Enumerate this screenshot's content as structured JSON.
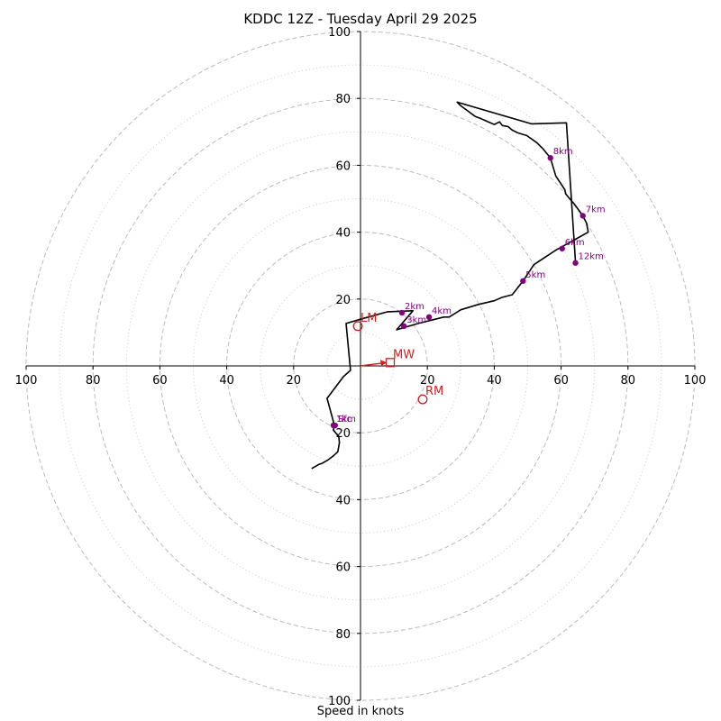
{
  "chart_data": {
    "type": "hodograph",
    "title": "KDDC 12Z - Tuesday April 29 2025",
    "xlabel": "Speed in knots",
    "xlim": [
      -100,
      100
    ],
    "ylim": [
      -100,
      100
    ],
    "ring_major": [
      20,
      40,
      60,
      80,
      100
    ],
    "ring_minor": [
      10,
      30,
      50,
      70,
      90
    ],
    "x_ticks": [
      {
        "value": -100,
        "label": "100"
      },
      {
        "value": -80,
        "label": "80"
      },
      {
        "value": -60,
        "label": "60"
      },
      {
        "value": -40,
        "label": "40"
      },
      {
        "value": -20,
        "label": "20"
      },
      {
        "value": 20,
        "label": "20"
      },
      {
        "value": 40,
        "label": "40"
      },
      {
        "value": 60,
        "label": "60"
      },
      {
        "value": 80,
        "label": "80"
      },
      {
        "value": 100,
        "label": "100"
      }
    ],
    "y_ticks": [
      {
        "value": 100,
        "label": "100"
      },
      {
        "value": 80,
        "label": "80"
      },
      {
        "value": 60,
        "label": "60"
      },
      {
        "value": 40,
        "label": "40"
      },
      {
        "value": 20,
        "label": "20"
      },
      {
        "value": -20,
        "label": "20"
      },
      {
        "value": -40,
        "label": "40"
      },
      {
        "value": -60,
        "label": "60"
      },
      {
        "value": -80,
        "label": "80"
      },
      {
        "value": -100,
        "label": "100"
      }
    ],
    "trace": [
      [
        -14.6,
        -30.7
      ],
      [
        -12.5,
        -29.5
      ],
      [
        -11.6,
        -29.2
      ],
      [
        -9.7,
        -28.1
      ],
      [
        -8.1,
        -26.9
      ],
      [
        -6.8,
        -25.7
      ],
      [
        -6.3,
        -23.0
      ],
      [
        -6.5,
        -21.1
      ],
      [
        -8.1,
        -19.2
      ],
      [
        -7.8,
        -17.8
      ],
      [
        -10.0,
        -9.7
      ],
      [
        -5.1,
        -3.2
      ],
      [
        -3.0,
        -1.3
      ],
      [
        -4.3,
        12.7
      ],
      [
        0.5,
        14.1
      ],
      [
        8.1,
        16.2
      ],
      [
        15.7,
        16.5
      ],
      [
        10.8,
        10.8
      ],
      [
        17.3,
        12.7
      ],
      [
        24.9,
        14.6
      ],
      [
        26.5,
        14.6
      ],
      [
        30.0,
        16.8
      ],
      [
        35.4,
        18.4
      ],
      [
        40.0,
        19.5
      ],
      [
        42.4,
        20.5
      ],
      [
        45.4,
        21.3
      ],
      [
        48.6,
        25.4
      ],
      [
        51.9,
        30.3
      ],
      [
        58.4,
        34.6
      ],
      [
        63.8,
        37.6
      ],
      [
        68.1,
        40.0
      ],
      [
        67.6,
        42.7
      ],
      [
        66.5,
        44.9
      ],
      [
        63.8,
        48.6
      ],
      [
        63.0,
        49.5
      ],
      [
        61.4,
        51.4
      ],
      [
        61.1,
        52.7
      ],
      [
        58.4,
        56.8
      ],
      [
        56.8,
        62.2
      ],
      [
        54.6,
        64.9
      ],
      [
        52.7,
        66.8
      ],
      [
        49.7,
        68.9
      ],
      [
        47.0,
        69.7
      ],
      [
        45.4,
        70.5
      ],
      [
        44.1,
        71.6
      ],
      [
        42.4,
        71.9
      ],
      [
        41.6,
        73.0
      ],
      [
        40.0,
        72.2
      ],
      [
        35.7,
        74.1
      ],
      [
        34.3,
        74.6
      ],
      [
        30.0,
        77.8
      ],
      [
        28.9,
        78.9
      ],
      [
        51.1,
        72.4
      ],
      [
        61.6,
        72.7
      ],
      [
        64.3,
        30.8
      ]
    ],
    "height_markers": [
      {
        "label": "Sfc",
        "x": -7.6,
        "y": -17.8
      },
      {
        "label": "1km",
        "x": -8.1,
        "y": -17.8
      },
      {
        "label": "2km",
        "x": 12.4,
        "y": 15.9
      },
      {
        "label": "3km",
        "x": 13.0,
        "y": 11.9
      },
      {
        "label": "4km",
        "x": 20.5,
        "y": 14.6
      },
      {
        "label": "5km",
        "x": 48.6,
        "y": 25.4
      },
      {
        "label": "6km",
        "x": 60.3,
        "y": 35.1
      },
      {
        "label": "7km",
        "x": 66.5,
        "y": 44.9
      },
      {
        "label": "8km",
        "x": 56.8,
        "y": 62.2
      },
      {
        "label": "12km",
        "x": 64.3,
        "y": 30.8
      }
    ],
    "storm_motion": [
      {
        "label": "LM",
        "x": -0.8,
        "y": 11.9,
        "marker": "circle"
      },
      {
        "label": "RM",
        "x": 18.6,
        "y": -10.0,
        "marker": "circle"
      },
      {
        "label": "MW",
        "x": 8.9,
        "y": 1.0,
        "marker": "square"
      }
    ],
    "colors": {
      "trace": "#000000",
      "height_marker": "#800080",
      "storm_motion": "#cc2222",
      "grid": "#bbbbbb",
      "minor_grid": "#cccccc"
    }
  }
}
